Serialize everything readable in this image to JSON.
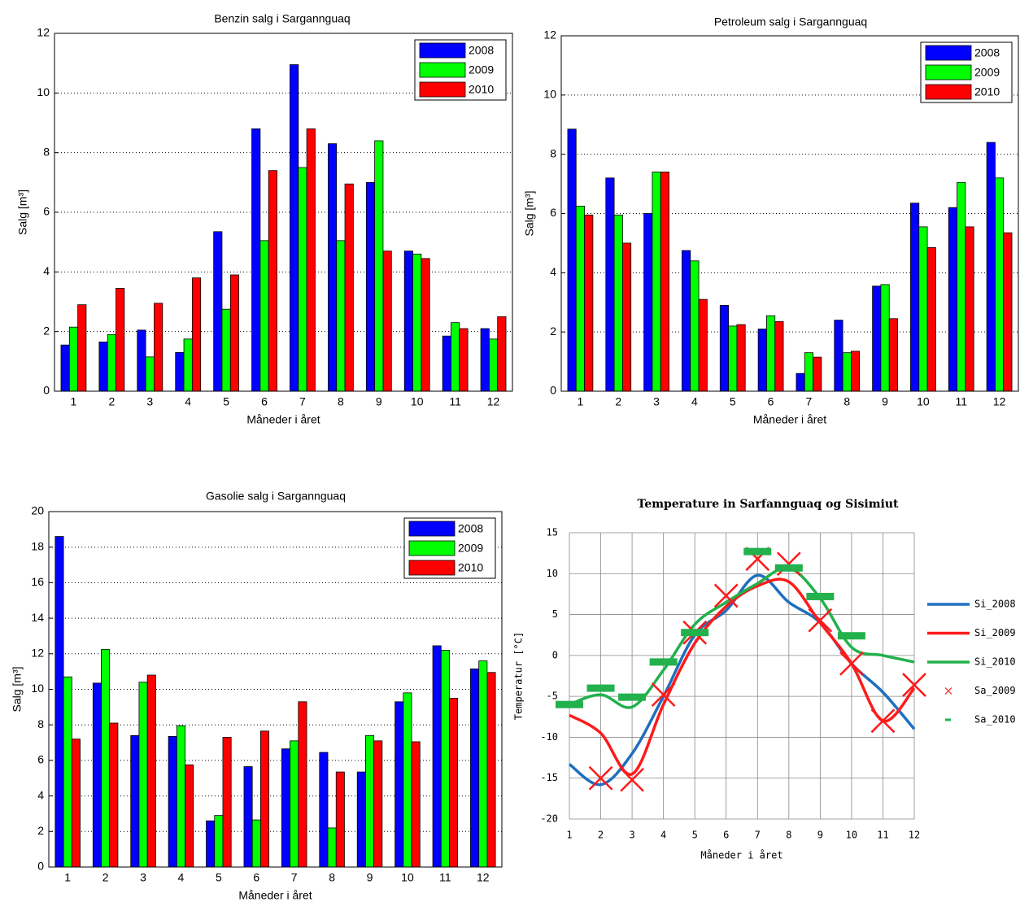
{
  "chart_data": [
    {
      "type": "bar",
      "title": "Benzin salg i Sargannguaq",
      "xlabel": "Måneder i året",
      "ylabel": "Salg [m³]",
      "categories": [
        "1",
        "2",
        "3",
        "4",
        "5",
        "6",
        "7",
        "8",
        "9",
        "10",
        "11",
        "12"
      ],
      "series": [
        {
          "name": "2008",
          "color": "#0000ff",
          "values": [
            1.55,
            1.65,
            2.05,
            1.3,
            5.35,
            8.8,
            10.95,
            8.3,
            7.0,
            4.7,
            1.85,
            2.1
          ]
        },
        {
          "name": "2009",
          "color": "#00ff00",
          "values": [
            2.15,
            1.9,
            1.15,
            1.75,
            2.75,
            5.05,
            7.5,
            5.05,
            8.4,
            4.6,
            2.3,
            1.75
          ]
        },
        {
          "name": "2010",
          "color": "#ff0000",
          "values": [
            2.9,
            3.45,
            2.95,
            3.8,
            3.9,
            7.4,
            8.8,
            6.95,
            4.7,
            4.45,
            2.1,
            2.5
          ]
        }
      ],
      "ylim": [
        0,
        12
      ],
      "yticks": [
        0,
        2,
        4,
        6,
        8,
        10,
        12
      ],
      "grid": "y",
      "legend": "upper right"
    },
    {
      "type": "bar",
      "title": "Petroleum salg i Sargannguaq",
      "xlabel": "Måneder i året",
      "ylabel": "Salg [m³]",
      "categories": [
        "1",
        "2",
        "3",
        "4",
        "5",
        "6",
        "7",
        "8",
        "9",
        "10",
        "11",
        "12"
      ],
      "series": [
        {
          "name": "2008",
          "color": "#0000ff",
          "values": [
            8.85,
            7.2,
            6.0,
            4.75,
            2.9,
            2.1,
            0.6,
            2.4,
            3.55,
            6.35,
            6.2,
            8.4
          ]
        },
        {
          "name": "2009",
          "color": "#00ff00",
          "values": [
            6.25,
            5.95,
            7.4,
            4.4,
            2.2,
            2.55,
            1.3,
            1.3,
            3.6,
            5.55,
            7.05,
            7.2
          ]
        },
        {
          "name": "2010",
          "color": "#ff0000",
          "values": [
            5.95,
            5.0,
            7.4,
            3.1,
            2.25,
            2.35,
            1.15,
            1.35,
            2.45,
            4.85,
            5.55,
            5.35
          ]
        }
      ],
      "ylim": [
        0,
        12
      ],
      "yticks": [
        0,
        2,
        4,
        6,
        8,
        10,
        12
      ],
      "grid": "y",
      "legend": "upper right"
    },
    {
      "type": "bar",
      "title": "Gasolie salg i Sargannguaq",
      "xlabel": "Måneder i året",
      "ylabel": "Salg [m³]",
      "categories": [
        "1",
        "2",
        "3",
        "4",
        "5",
        "6",
        "7",
        "8",
        "9",
        "10",
        "11",
        "12"
      ],
      "series": [
        {
          "name": "2008",
          "color": "#0000ff",
          "values": [
            18.6,
            10.35,
            7.4,
            7.35,
            2.6,
            5.65,
            6.65,
            6.45,
            5.35,
            9.3,
            12.45,
            11.15
          ]
        },
        {
          "name": "2009",
          "color": "#00ff00",
          "values": [
            10.7,
            12.25,
            10.4,
            7.95,
            2.9,
            2.65,
            7.1,
            2.2,
            7.4,
            9.8,
            12.2,
            11.6
          ]
        },
        {
          "name": "2010",
          "color": "#ff0000",
          "values": [
            7.2,
            8.1,
            10.8,
            5.75,
            7.3,
            7.65,
            9.3,
            5.35,
            7.1,
            7.05,
            9.5,
            10.95
          ]
        }
      ],
      "ylim": [
        0,
        20
      ],
      "yticks": [
        0,
        2,
        4,
        6,
        8,
        10,
        12,
        14,
        16,
        18,
        20
      ],
      "grid": "y",
      "legend": "upper right"
    },
    {
      "type": "line",
      "title": "Temperature in Sarfannguaq og Sisimiut",
      "xlabel": "Måneder i året",
      "ylabel": "Temperatur [°C]",
      "x": [
        1,
        2,
        3,
        4,
        5,
        6,
        7,
        8,
        9,
        10,
        11,
        12
      ],
      "series": [
        {
          "name": "Si_2008",
          "color": "#1f6fc0",
          "marker": "line",
          "values": [
            -13.3,
            -15.8,
            -12,
            -5,
            2.5,
            5.5,
            9.8,
            6.5,
            4,
            -1,
            -4.5,
            -9
          ]
        },
        {
          "name": "Si_2009",
          "color": "#ff1a1a",
          "marker": "line",
          "values": [
            -7.3,
            -9.5,
            -14.5,
            -6,
            1.5,
            6,
            8.5,
            9,
            4,
            -1,
            -8,
            -4
          ]
        },
        {
          "name": "Si_2010",
          "color": "#22b14c",
          "marker": "line",
          "values": [
            -6,
            -4.8,
            -6.3,
            -1.8,
            3.8,
            6.5,
            8.8,
            10.7,
            7,
            1,
            0,
            -0.8
          ]
        },
        {
          "name": "Sa_2009",
          "color": "#ff1a1a",
          "marker": "x",
          "values": [
            null,
            -15,
            -15.2,
            -4.8,
            2.8,
            7.3,
            11.8,
            11.2,
            4.3,
            -1,
            -8,
            -3.6
          ]
        },
        {
          "name": "Sa_2010",
          "color": "#22b14c",
          "marker": "dash",
          "values": [
            -6,
            -4,
            -5.1,
            -0.8,
            2.8,
            null,
            12.7,
            10.7,
            7.2,
            2.4,
            null,
            null
          ]
        }
      ],
      "xlim": [
        1,
        12
      ],
      "xticks": [
        1,
        2,
        3,
        4,
        5,
        6,
        7,
        8,
        9,
        10,
        11,
        12
      ],
      "ylim": [
        -20,
        15
      ],
      "yticks": [
        -20,
        -15,
        -10,
        -5,
        0,
        5,
        10,
        15
      ],
      "grid": "both",
      "legend": "right"
    }
  ]
}
